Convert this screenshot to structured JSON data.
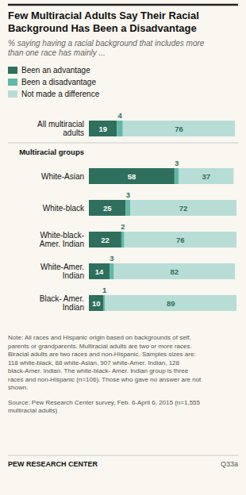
{
  "chart_data": {
    "type": "bar",
    "orientation": "horizontal",
    "stacked": true,
    "data_labels": true,
    "tick_labels": "y",
    "legend": "top",
    "title": "Few Multiracial Adults Say Their Racial\nBackground Has Been a Disadvantage",
    "subtitle": "% saying having a racial background that includes more\nthan one race has mainly ...",
    "categories": [
      "All multiracial\nadults",
      "White-Asian",
      "White-black",
      "White-black-\nAmer. Indian",
      "White-Amer.\nIndian",
      "Black- Amer.\nIndian"
    ],
    "series": [
      {
        "name": "Been an advantage",
        "color": "#2e6f5e",
        "values": [
          19,
          58,
          25,
          22,
          14,
          10
        ]
      },
      {
        "name": "Been a disadvantage",
        "color": "#62b8a7",
        "values": [
          4,
          3,
          3,
          2,
          3,
          1
        ]
      },
      {
        "name": "Not made a difference",
        "color": "#b8ddd7",
        "values": [
          76,
          37,
          72,
          76,
          82,
          89
        ]
      }
    ],
    "xlim": [
      0,
      100
    ],
    "annotations": [
      "Multiracial groups",
      "Note: All races and Hispanic origin based on backgrounds of self,\nparents or grandparents. Multiracial adults are two or more races.\nBiracial adults are two races and non-Hispanic. Samples sizes are:\n118 white-black, 88 white-Asian, 907 white-Amer. Indian, 128\nblack-Amer. Indian. The white-black- Amer. Indian group is three\nraces and non-Hispanic (n=106). Those who gave no answer are not\nshown.",
      "Source: Pew Research Center survey, Feb. 6-April 6, 2015 (n=1,555\nmultiracial adults)",
      "PEW RESEARCH CENTER",
      "Q33a"
    ]
  }
}
